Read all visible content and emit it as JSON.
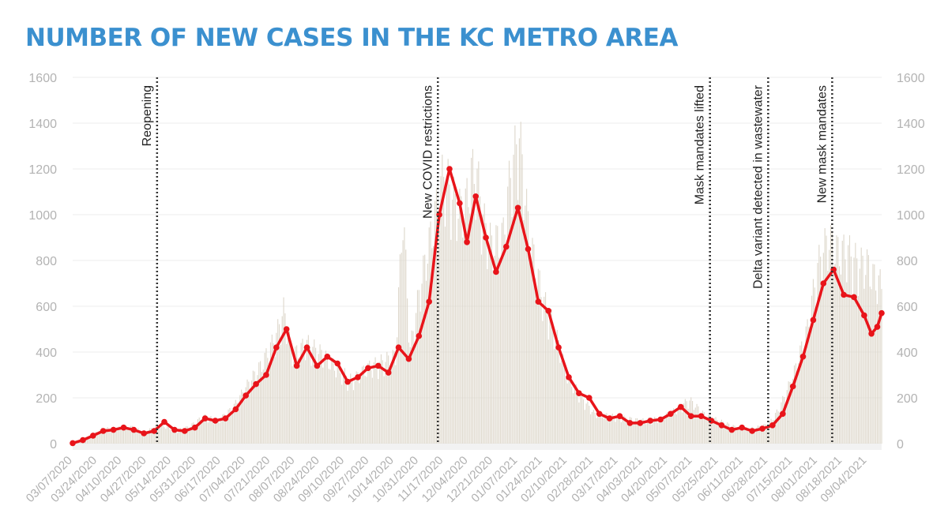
{
  "title": "NUMBER OF NEW CASES IN THE KC METRO AREA",
  "colors": {
    "title": "#3b90cf",
    "line": "#e8141a",
    "bars": "#ded8cc",
    "grid": "#ececec",
    "ticks": "#b3b3b3",
    "annotation": "#222222"
  },
  "chart_data": {
    "type": "bar",
    "title": "NUMBER OF NEW CASES IN THE KC METRO AREA",
    "xlabel": "",
    "ylabel": "",
    "ylim": [
      0,
      1600
    ],
    "yticks": [
      0,
      200,
      400,
      600,
      800,
      1000,
      1200,
      1400,
      1600
    ],
    "grid": true,
    "dual_y_axis": true,
    "x_start": "03/07/2020",
    "x_end": "09/14/2021",
    "xtick_labels": [
      "03/07/2020",
      "03/24/2020",
      "04/10/2020",
      "04/27/2020",
      "05/14/2020",
      "05/31/2020",
      "06/17/2020",
      "07/04/2020",
      "07/21/2020",
      "08/07/2020",
      "08/24/2020",
      "09/10/2020",
      "09/27/2020",
      "10/14/2020",
      "10/31/2020",
      "11/17/2020",
      "12/04/2020",
      "12/21/2020",
      "01/07/2021",
      "01/24/2021",
      "02/10/2021",
      "02/28/2021",
      "03/17/2021",
      "04/03/2021",
      "04/20/2021",
      "05/07/2021",
      "05/25/2021",
      "06/11/2021",
      "06/28/2021",
      "07/15/2021",
      "08/01/2021",
      "08/18/2021",
      "09/04/2021"
    ],
    "annotations": [
      {
        "date": "05/04/2020",
        "label": "Reopening"
      },
      {
        "date": "11/13/2020",
        "label": "New COVID restrictions"
      },
      {
        "date": "05/19/2021",
        "label": "Mask mandates lifted"
      },
      {
        "date": "06/28/2021",
        "label": "Delta variant detected in wastewater"
      },
      {
        "date": "08/11/2021",
        "label": "New mask mandates"
      }
    ],
    "series": [
      {
        "type": "bar",
        "points": [
          [
            "03/07/2020",
            2
          ],
          [
            "03/17/2020",
            25
          ],
          [
            "03/27/2020",
            70
          ],
          [
            "04/06/2020",
            75
          ],
          [
            "04/16/2020",
            80
          ],
          [
            "04/26/2020",
            55
          ],
          [
            "05/06/2020",
            95
          ],
          [
            "05/16/2020",
            60
          ],
          [
            "05/26/2020",
            80
          ],
          [
            "06/05/2020",
            130
          ],
          [
            "06/15/2020",
            110
          ],
          [
            "06/25/2020",
            170
          ],
          [
            "07/05/2020",
            280
          ],
          [
            "07/15/2020",
            380
          ],
          [
            "07/25/2020",
            520
          ],
          [
            "07/30/2020",
            640
          ],
          [
            "08/05/2020",
            420
          ],
          [
            "08/15/2020",
            480
          ],
          [
            "08/25/2020",
            430
          ],
          [
            "09/05/2020",
            360
          ],
          [
            "09/15/2020",
            300
          ],
          [
            "09/25/2020",
            360
          ],
          [
            "10/05/2020",
            390
          ],
          [
            "10/15/2020",
            420
          ],
          [
            "10/20/2020",
            1120
          ],
          [
            "10/25/2020",
            450
          ],
          [
            "11/01/2020",
            760
          ],
          [
            "11/10/2020",
            1060
          ],
          [
            "11/17/2020",
            1300
          ],
          [
            "11/25/2020",
            1150
          ],
          [
            "12/01/2020",
            1100
          ],
          [
            "12/06/2020",
            1300
          ],
          [
            "12/10/2020",
            1280
          ],
          [
            "12/15/2020",
            1050
          ],
          [
            "12/20/2020",
            950
          ],
          [
            "12/28/2020",
            1000
          ],
          [
            "01/02/2021",
            1300
          ],
          [
            "01/08/2021",
            1480
          ],
          [
            "01/15/2021",
            980
          ],
          [
            "01/24/2021",
            700
          ],
          [
            "02/01/2021",
            550
          ],
          [
            "02/10/2021",
            320
          ],
          [
            "02/20/2021",
            220
          ],
          [
            "03/01/2021",
            140
          ],
          [
            "03/15/2021",
            130
          ],
          [
            "04/01/2021",
            110
          ],
          [
            "04/15/2021",
            120
          ],
          [
            "04/25/2021",
            160
          ],
          [
            "05/05/2021",
            210
          ],
          [
            "05/15/2021",
            140
          ],
          [
            "05/25/2021",
            110
          ],
          [
            "06/05/2021",
            80
          ],
          [
            "06/15/2021",
            70
          ],
          [
            "06/28/2021",
            90
          ],
          [
            "07/05/2021",
            160
          ],
          [
            "07/15/2021",
            320
          ],
          [
            "07/25/2021",
            550
          ],
          [
            "08/01/2021",
            850
          ],
          [
            "08/08/2021",
            980
          ],
          [
            "08/15/2021",
            920
          ],
          [
            "08/22/2021",
            920
          ],
          [
            "08/29/2021",
            860
          ],
          [
            "09/04/2021",
            860
          ],
          [
            "09/10/2021",
            780
          ],
          [
            "09/14/2021",
            760
          ]
        ]
      },
      {
        "type": "line",
        "points": [
          [
            "03/07/2020",
            2
          ],
          [
            "03/14/2020",
            15
          ],
          [
            "03/21/2020",
            35
          ],
          [
            "03/28/2020",
            55
          ],
          [
            "04/04/2020",
            60
          ],
          [
            "04/11/2020",
            70
          ],
          [
            "04/18/2020",
            60
          ],
          [
            "04/25/2020",
            45
          ],
          [
            "05/02/2020",
            55
          ],
          [
            "05/09/2020",
            95
          ],
          [
            "05/16/2020",
            60
          ],
          [
            "05/23/2020",
            55
          ],
          [
            "05/30/2020",
            70
          ],
          [
            "06/06/2020",
            110
          ],
          [
            "06/13/2020",
            100
          ],
          [
            "06/20/2020",
            110
          ],
          [
            "06/27/2020",
            150
          ],
          [
            "07/04/2020",
            210
          ],
          [
            "07/11/2020",
            260
          ],
          [
            "07/18/2020",
            300
          ],
          [
            "07/25/2020",
            420
          ],
          [
            "08/01/2020",
            500
          ],
          [
            "08/08/2020",
            340
          ],
          [
            "08/15/2020",
            420
          ],
          [
            "08/22/2020",
            340
          ],
          [
            "08/29/2020",
            380
          ],
          [
            "09/05/2020",
            350
          ],
          [
            "09/12/2020",
            270
          ],
          [
            "09/19/2020",
            290
          ],
          [
            "09/26/2020",
            330
          ],
          [
            "10/03/2020",
            340
          ],
          [
            "10/10/2020",
            310
          ],
          [
            "10/17/2020",
            420
          ],
          [
            "10/24/2020",
            370
          ],
          [
            "10/31/2020",
            470
          ],
          [
            "11/07/2020",
            620
          ],
          [
            "11/14/2020",
            1000
          ],
          [
            "11/21/2020",
            1200
          ],
          [
            "11/28/2020",
            1050
          ],
          [
            "12/03/2020",
            880
          ],
          [
            "12/09/2020",
            1080
          ],
          [
            "12/16/2020",
            900
          ],
          [
            "12/23/2020",
            750
          ],
          [
            "12/30/2020",
            860
          ],
          [
            "01/07/2021",
            1030
          ],
          [
            "01/14/2021",
            850
          ],
          [
            "01/21/2021",
            620
          ],
          [
            "01/28/2021",
            580
          ],
          [
            "02/04/2021",
            420
          ],
          [
            "02/11/2021",
            290
          ],
          [
            "02/18/2021",
            220
          ],
          [
            "02/25/2021",
            200
          ],
          [
            "03/04/2021",
            130
          ],
          [
            "03/11/2021",
            110
          ],
          [
            "03/18/2021",
            120
          ],
          [
            "03/25/2021",
            90
          ],
          [
            "04/01/2021",
            90
          ],
          [
            "04/08/2021",
            100
          ],
          [
            "04/15/2021",
            105
          ],
          [
            "04/22/2021",
            130
          ],
          [
            "04/29/2021",
            160
          ],
          [
            "05/06/2021",
            120
          ],
          [
            "05/13/2021",
            120
          ],
          [
            "05/20/2021",
            100
          ],
          [
            "05/27/2021",
            80
          ],
          [
            "06/03/2021",
            60
          ],
          [
            "06/10/2021",
            70
          ],
          [
            "06/17/2021",
            55
          ],
          [
            "06/24/2021",
            65
          ],
          [
            "07/01/2021",
            80
          ],
          [
            "07/08/2021",
            130
          ],
          [
            "07/15/2021",
            250
          ],
          [
            "07/22/2021",
            380
          ],
          [
            "07/29/2021",
            540
          ],
          [
            "08/05/2021",
            700
          ],
          [
            "08/12/2021",
            760
          ],
          [
            "08/19/2021",
            650
          ],
          [
            "08/26/2021",
            640
          ],
          [
            "09/02/2021",
            560
          ],
          [
            "09/07/2021",
            480
          ],
          [
            "09/11/2021",
            510
          ],
          [
            "09/14/2021",
            570
          ]
        ]
      }
    ]
  }
}
